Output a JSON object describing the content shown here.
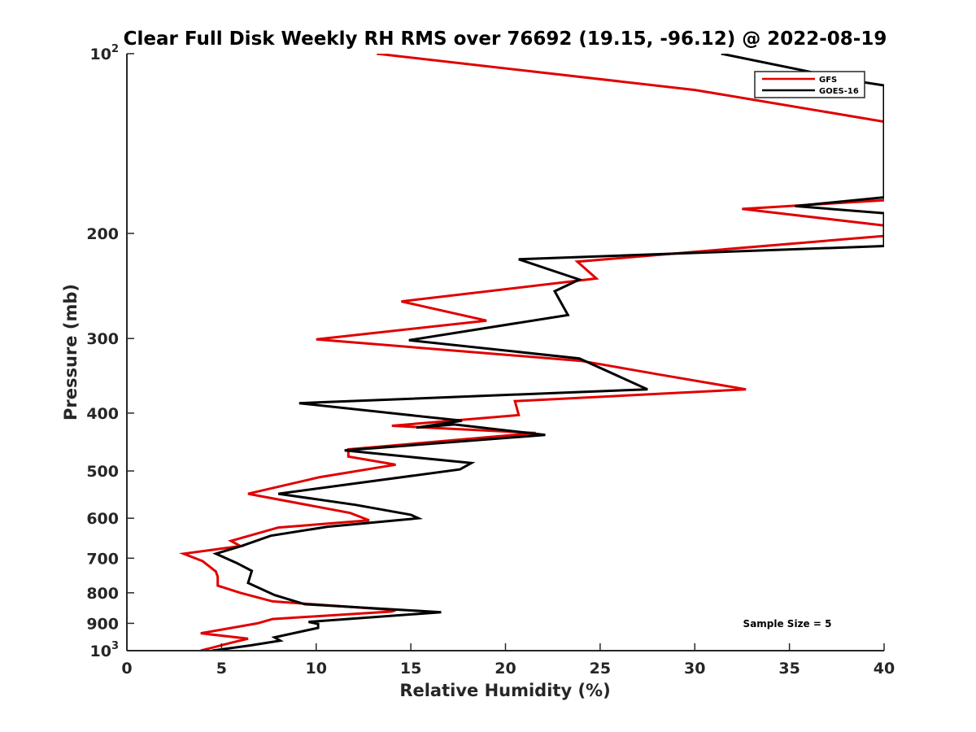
{
  "chart_data": {
    "type": "line",
    "title": "Clear Full Disk Weekly RH RMS over 76692 (19.15, -96.12) @ 2022-08-19",
    "xlabel": "Relative Humidity (%)",
    "ylabel": "Pressure (mb)",
    "xlim": [
      0,
      40
    ],
    "ylim": [
      1000,
      100
    ],
    "y_scale": "log",
    "y_reversed": true,
    "x_ticks": [
      0,
      5,
      10,
      15,
      20,
      25,
      30,
      35,
      40
    ],
    "x_tick_labels": [
      "0",
      "5",
      "10",
      "15",
      "20",
      "25",
      "30",
      "35",
      "40"
    ],
    "y_ticks": [
      100,
      200,
      300,
      400,
      500,
      600,
      700,
      800,
      900,
      1000
    ],
    "y_tick_labels": [
      {
        "base": "10",
        "exp": "2"
      },
      {
        "base": "200",
        "exp": ""
      },
      {
        "base": "300",
        "exp": ""
      },
      {
        "base": "400",
        "exp": ""
      },
      {
        "base": "500",
        "exp": ""
      },
      {
        "base": "600",
        "exp": ""
      },
      {
        "base": "700",
        "exp": ""
      },
      {
        "base": "800",
        "exp": ""
      },
      {
        "base": "900",
        "exp": ""
      },
      {
        "base": "10",
        "exp": "3"
      }
    ],
    "legend": {
      "position": "top-right"
    },
    "annotation": "Sample Size = 5",
    "series": [
      {
        "name": "GFS",
        "color": "#e00000",
        "points": [
          [
            13.2,
            100
          ],
          [
            30,
            115
          ],
          [
            40,
            130
          ],
          [
            40,
            176
          ],
          [
            32.5,
            182
          ],
          [
            40,
            194
          ],
          [
            40,
            202
          ],
          [
            23.8,
            223
          ],
          [
            24.8,
            238
          ],
          [
            14.5,
            260
          ],
          [
            19,
            280
          ],
          [
            10,
            301
          ],
          [
            24,
            327
          ],
          [
            28.2,
            345
          ],
          [
            32.7,
            365
          ],
          [
            20.5,
            382
          ],
          [
            20.7,
            403
          ],
          [
            14,
            420
          ],
          [
            21.6,
            432
          ],
          [
            11.7,
            460
          ],
          [
            11.7,
            473
          ],
          [
            14.2,
            488
          ],
          [
            10.2,
            512
          ],
          [
            6.4,
            546
          ],
          [
            11.8,
            588
          ],
          [
            12.8,
            605
          ],
          [
            8,
            622
          ],
          [
            5.5,
            655
          ],
          [
            6,
            668
          ],
          [
            3,
            688
          ],
          [
            4,
            708
          ],
          [
            4.7,
            737
          ],
          [
            4.8,
            752
          ],
          [
            4.8,
            778
          ],
          [
            6,
            800
          ],
          [
            7.7,
            827
          ],
          [
            14.2,
            855
          ],
          [
            14,
            860
          ],
          [
            7.7,
            885
          ],
          [
            6.9,
            900
          ],
          [
            3.9,
            935
          ],
          [
            6.4,
            955
          ],
          [
            5.5,
            970
          ],
          [
            3.9,
            1000
          ]
        ]
      },
      {
        "name": "GOES-16",
        "color": "#000000",
        "points": [
          [
            31.4,
            100
          ],
          [
            38.4,
            111
          ],
          [
            40,
            113
          ],
          [
            40,
            174
          ],
          [
            35.3,
            180
          ],
          [
            40,
            185
          ],
          [
            40,
            210
          ],
          [
            20.7,
            221
          ],
          [
            23.9,
            239
          ],
          [
            22.6,
            250
          ],
          [
            23.3,
            274
          ],
          [
            14.9,
            302
          ],
          [
            23.9,
            324
          ],
          [
            27.5,
            365
          ],
          [
            9.1,
            385
          ],
          [
            17.7,
            412
          ],
          [
            15.3,
            423
          ],
          [
            17.3,
            418
          ],
          [
            22.1,
            435
          ],
          [
            11.5,
            462
          ],
          [
            18.2,
            485
          ],
          [
            17.6,
            497
          ],
          [
            8,
            546
          ],
          [
            12.1,
            570
          ],
          [
            15,
            592
          ],
          [
            15.4,
            600
          ],
          [
            10.6,
            620
          ],
          [
            7.6,
            642
          ],
          [
            6.1,
            667
          ],
          [
            4.7,
            688
          ],
          [
            5.8,
            713
          ],
          [
            6.6,
            735
          ],
          [
            6.4,
            770
          ],
          [
            7.8,
            807
          ],
          [
            9.4,
            836
          ],
          [
            16.6,
            862
          ],
          [
            9.6,
            895
          ],
          [
            10.1,
            902
          ],
          [
            10.1,
            916
          ],
          [
            7.8,
            950
          ],
          [
            8.1,
            962
          ],
          [
            6.5,
            980
          ],
          [
            4.5,
            1000
          ]
        ]
      }
    ]
  }
}
